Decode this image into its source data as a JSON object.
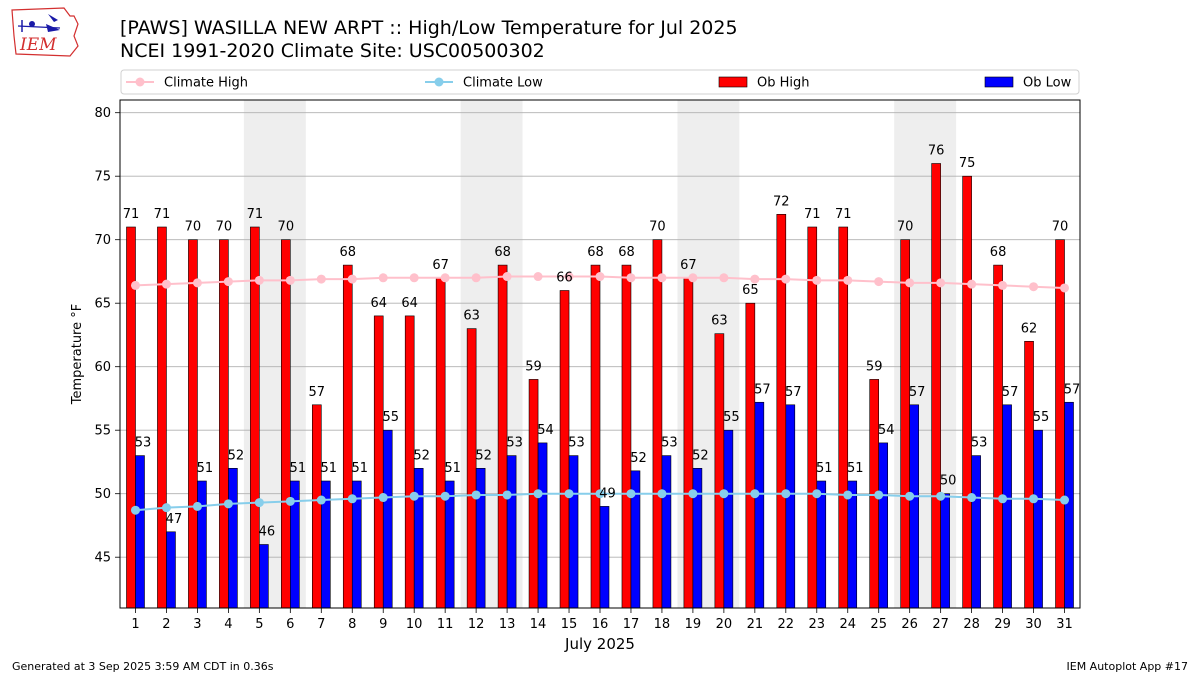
{
  "header": {
    "title_line1": "[PAWS] WASILLA NEW ARPT :: High/Low Temperature for Jul 2025",
    "title_line2": "NCEI 1991-2020 Climate Site: USC00500302"
  },
  "logo": {
    "text": "IEM",
    "color": "#d32f2f"
  },
  "footer": {
    "generated": "Generated at 3 Sep 2025 3:59 AM CDT in 0.36s",
    "app": "IEM Autoplot App #17"
  },
  "chart_data": {
    "type": "bar",
    "xlabel": "July 2025",
    "ylabel": "Temperature °F",
    "ylim": [
      41,
      81
    ],
    "yticks": [
      45,
      50,
      55,
      60,
      65,
      70,
      75,
      80
    ],
    "grid": "horizontal",
    "legend_placement": "top",
    "weekend_shading_days": [
      [
        5,
        6
      ],
      [
        12,
        13
      ],
      [
        19,
        20
      ],
      [
        26,
        27
      ]
    ],
    "categories": [
      "1",
      "2",
      "3",
      "4",
      "5",
      "6",
      "7",
      "8",
      "9",
      "10",
      "11",
      "12",
      "13",
      "14",
      "15",
      "16",
      "17",
      "18",
      "19",
      "20",
      "21",
      "22",
      "23",
      "24",
      "25",
      "26",
      "27",
      "28",
      "29",
      "30",
      "31"
    ],
    "series": [
      {
        "name": "Ob High",
        "kind": "bar",
        "color": "#ff0000",
        "values": [
          71,
          71,
          70,
          70,
          71,
          70,
          57,
          68,
          64,
          64,
          67,
          63,
          68,
          59,
          66,
          68,
          68,
          70,
          67,
          62.6,
          65,
          72,
          71,
          71,
          59,
          70,
          76,
          75,
          68,
          62,
          70
        ],
        "labels": [
          "71",
          "71",
          "70",
          "70",
          "71",
          "70",
          "57",
          "68",
          "64",
          "64",
          "67",
          "63",
          "68",
          "59",
          "66",
          "68",
          "68",
          "70",
          "67",
          "63",
          "65",
          "72",
          "71",
          "71",
          "59",
          "70",
          "76",
          "75",
          "68",
          "62",
          "70"
        ]
      },
      {
        "name": "Ob Low",
        "kind": "bar",
        "color": "#0000ff",
        "values": [
          53,
          47,
          51,
          52,
          46,
          51,
          51,
          51,
          55,
          52,
          51,
          52,
          53,
          54,
          53,
          49,
          51.8,
          53,
          52,
          55,
          57.2,
          57,
          51,
          51,
          54,
          57,
          50,
          53,
          57,
          55,
          57.2
        ],
        "labels": [
          "53",
          "47",
          "51",
          "52",
          "46",
          "51",
          "51",
          "51",
          "55",
          "52",
          "51",
          "52",
          "53",
          "54",
          "53",
          "49",
          "52",
          "53",
          "52",
          "55",
          "57",
          "57",
          "51",
          "51",
          "54",
          "57",
          "50",
          "53",
          "57",
          "55",
          "57"
        ]
      },
      {
        "name": "Climate High",
        "kind": "line",
        "color": "#ffc0cb",
        "values": [
          66.4,
          66.5,
          66.6,
          66.7,
          66.8,
          66.8,
          66.9,
          66.9,
          67.0,
          67.0,
          67.0,
          67.0,
          67.1,
          67.1,
          67.1,
          67.1,
          67.0,
          67.0,
          67.0,
          67.0,
          66.9,
          66.9,
          66.8,
          66.8,
          66.7,
          66.6,
          66.6,
          66.5,
          66.4,
          66.3,
          66.2
        ]
      },
      {
        "name": "Climate Low",
        "kind": "line",
        "color": "#87ceeb",
        "values": [
          48.7,
          48.9,
          49.0,
          49.2,
          49.3,
          49.4,
          49.5,
          49.6,
          49.7,
          49.8,
          49.8,
          49.9,
          49.9,
          50.0,
          50.0,
          50.0,
          50.0,
          50.0,
          50.0,
          50.0,
          50.0,
          50.0,
          50.0,
          49.9,
          49.9,
          49.8,
          49.8,
          49.7,
          49.6,
          49.6,
          49.5
        ]
      }
    ]
  }
}
